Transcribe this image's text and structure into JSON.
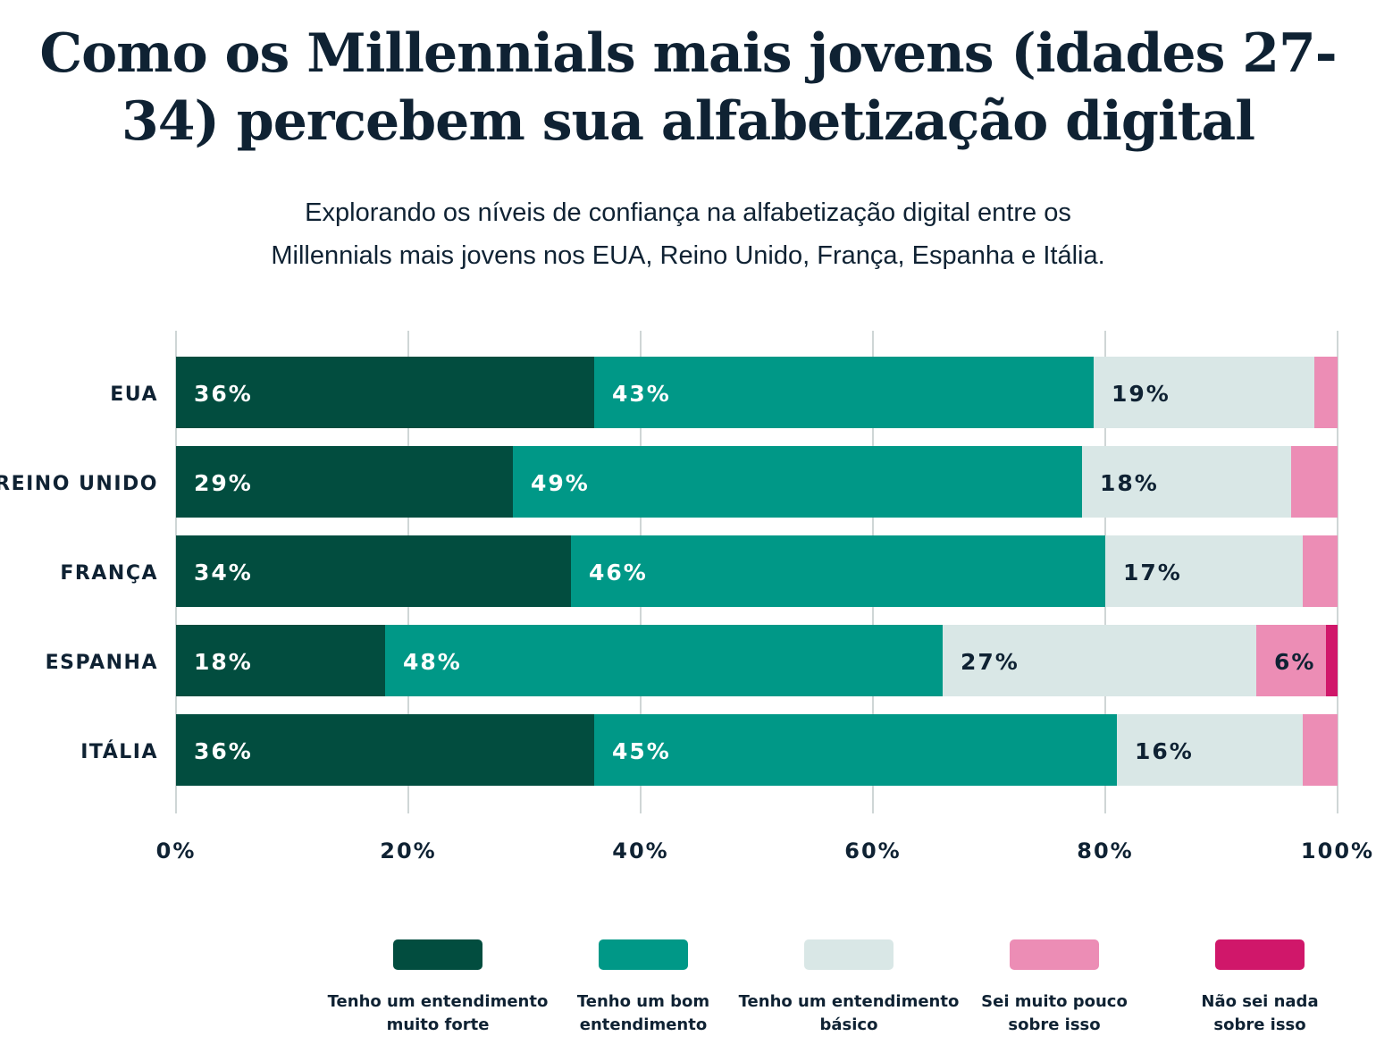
{
  "title": "Como os Millennials mais jovens (idades 27-34) percebem sua alfabetização digital",
  "subtitle_line1": "Explorando os níveis de confiança na alfabetização digital entre os",
  "subtitle_line2": "Millennials mais jovens nos EUA, Reino Unido, França, Espanha e Itália.",
  "chart_data": {
    "type": "bar",
    "orientation": "horizontal",
    "stacked": true,
    "categories": [
      "EUA",
      "REINO UNIDO",
      "FRANÇA",
      "ESPANHA",
      "ITÁLIA"
    ],
    "series": [
      {
        "name": "Tenho um entendimento muito forte",
        "color": "#024d3f",
        "label_color": "#ffffff",
        "values": [
          36,
          29,
          34,
          18,
          36
        ]
      },
      {
        "name": "Tenho um bom entendimento",
        "color": "#009887",
        "label_color": "#ffffff",
        "values": [
          43,
          49,
          46,
          48,
          45
        ]
      },
      {
        "name": "Tenho um entendimento básico",
        "color": "#d9e7e6",
        "label_color": "#0f2233",
        "values": [
          19,
          18,
          17,
          27,
          16
        ]
      },
      {
        "name": "Sei muito pouco sobre isso",
        "color": "#ec8db5",
        "label_color": "#0f2233",
        "values": [
          2,
          4,
          3,
          6,
          3
        ]
      },
      {
        "name": "Não sei nada sobre isso",
        "color": "#d0176a",
        "label_color": "#ffffff",
        "values": [
          0,
          0,
          0,
          1,
          0
        ]
      }
    ],
    "data_labels_min": 6,
    "xlim": [
      0,
      100
    ],
    "xticks": [
      "0%",
      "20%",
      "40%",
      "60%",
      "80%",
      "100%"
    ],
    "grid": true,
    "legend_position": "bottom"
  }
}
